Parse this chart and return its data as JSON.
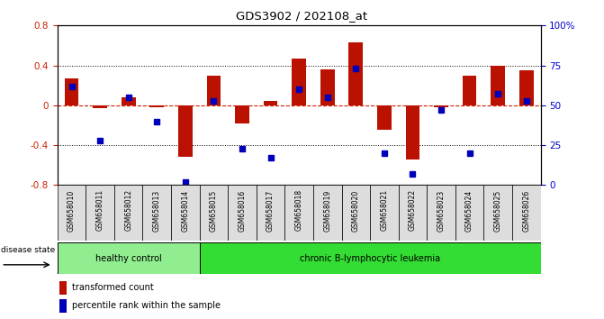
{
  "title": "GDS3902 / 202108_at",
  "samples": [
    "GSM658010",
    "GSM658011",
    "GSM658012",
    "GSM658013",
    "GSM658014",
    "GSM658015",
    "GSM658016",
    "GSM658017",
    "GSM658018",
    "GSM658019",
    "GSM658020",
    "GSM658021",
    "GSM658022",
    "GSM658023",
    "GSM658024",
    "GSM658025",
    "GSM658026"
  ],
  "red_values": [
    0.27,
    -0.03,
    0.08,
    -0.02,
    -0.52,
    0.3,
    -0.18,
    0.04,
    0.47,
    0.36,
    0.63,
    -0.25,
    -0.54,
    -0.02,
    0.3,
    0.4,
    0.35
  ],
  "blue_values_pct": [
    62,
    28,
    55,
    40,
    2,
    53,
    23,
    17,
    60,
    55,
    73,
    20,
    7,
    47,
    20,
    57,
    53
  ],
  "ylim": [
    -0.8,
    0.8
  ],
  "yticks_left": [
    -0.8,
    -0.4,
    0.0,
    0.4,
    0.8
  ],
  "yticks_right": [
    0,
    25,
    50,
    75,
    100
  ],
  "group_boundary": 5,
  "group_color_healthy": "#90EE90",
  "group_color_leukemia": "#33DD33",
  "group_label_healthy": "healthy control",
  "group_label_leukemia": "chronic B-lymphocytic leukemia",
  "bar_color": "#BB1100",
  "dot_color": "#0000BB",
  "zero_line_color": "#CC2200",
  "background_chart": "#FFFFFF",
  "tick_label_color_left": "#CC2200",
  "tick_label_color_right": "#0000CC",
  "legend_red_label": "transformed count",
  "legend_blue_label": "percentile rank within the sample",
  "disease_state_label": "disease state"
}
